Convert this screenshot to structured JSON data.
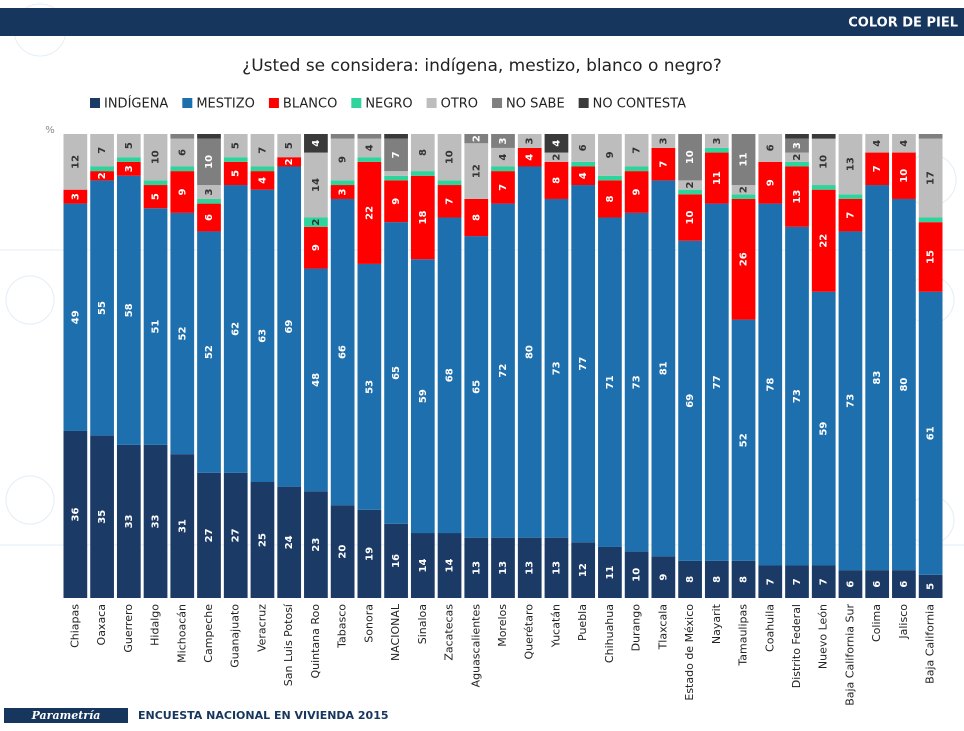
{
  "header": "COLOR DE PIEL",
  "footer": {
    "brand": "Parametría",
    "text": "ENCUESTA NACIONAL EN VIVIENDA 2015"
  },
  "chart_data": {
    "type": "stacked_bar_100",
    "title": "¿Usted se considera: indígena, mestizo, blanco o negro?",
    "y_label": "%",
    "ylim": [
      0,
      100
    ],
    "legend": "top",
    "categories": [
      "Chiapas",
      "Oaxaca",
      "Guerrero",
      "Hidalgo",
      "Michoacán",
      "Campeche",
      "Guanajuato",
      "Veracruz",
      "San Luis Potosí",
      "Quintana Roo",
      "Tabasco",
      "Sonora",
      "NACIONAL",
      "Sinaloa",
      "Zacatecas",
      "Aguascalientes",
      "Morelos",
      "Querétaro",
      "Yucatán",
      "Puebla",
      "Chihuahua",
      "Durango",
      "Tlaxcala",
      "Estado de México",
      "Nayarit",
      "Tamaulipas",
      "Coahuila",
      "Distrito Federal",
      "Nuevo León",
      "Baja California Sur",
      "Colima",
      "Jalisco",
      "Baja California"
    ],
    "series": [
      {
        "name": "INDÍGENA",
        "color": "#1b3a66",
        "values": [
          36,
          35,
          33,
          33,
          31,
          27,
          27,
          25,
          24,
          23,
          20,
          19,
          16,
          14,
          14,
          13,
          13,
          13,
          13,
          12,
          11,
          10,
          9,
          8,
          8,
          8,
          7,
          7,
          7,
          6,
          6,
          6,
          5
        ]
      },
      {
        "name": "MESTIZO",
        "color": "#1e6fae",
        "values": [
          49,
          55,
          58,
          51,
          52,
          52,
          62,
          63,
          69,
          48,
          66,
          53,
          65,
          59,
          68,
          65,
          72,
          80,
          73,
          77,
          71,
          73,
          81,
          69,
          77,
          52,
          78,
          73,
          59,
          73,
          83,
          80,
          61
        ]
      },
      {
        "name": "BLANCO",
        "color": "#ff0000",
        "values": [
          3,
          2,
          3,
          5,
          9,
          6,
          5,
          4,
          2,
          9,
          3,
          22,
          9,
          18,
          7,
          8,
          7,
          4,
          8,
          4,
          8,
          9,
          7,
          10,
          11,
          26,
          9,
          13,
          22,
          7,
          7,
          10,
          15
        ]
      },
      {
        "name": "NEGRO",
        "color": "#2fd39c",
        "values": [
          0,
          1,
          1,
          1,
          1,
          1,
          1,
          1,
          0,
          2,
          1,
          1,
          1,
          1,
          1,
          0,
          1,
          0,
          0,
          1,
          1,
          1,
          0,
          1,
          1,
          1,
          0,
          1,
          1,
          1,
          0,
          0,
          1
        ]
      },
      {
        "name": "OTRO",
        "color": "#bdbdbd",
        "values": [
          12,
          7,
          5,
          10,
          6,
          3,
          5,
          7,
          5,
          14,
          9,
          4,
          1,
          8,
          10,
          12,
          4,
          3,
          2,
          6,
          9,
          7,
          3,
          2,
          3,
          2,
          6,
          2,
          10,
          13,
          4,
          4,
          17
        ]
      },
      {
        "name": "NO SABE",
        "color": "#7f7f7f",
        "values": [
          0,
          0,
          0,
          0,
          1,
          10,
          0,
          0,
          0,
          0,
          1,
          1,
          7,
          0,
          0,
          2,
          3,
          0,
          0,
          0,
          0,
          0,
          0,
          10,
          0,
          11,
          0,
          3,
          0,
          0,
          0,
          0,
          1
        ]
      },
      {
        "name": "NO CONTESTA",
        "color": "#3a3a3a",
        "values": [
          0,
          0,
          0,
          0,
          0,
          1,
          0,
          0,
          0,
          4,
          0,
          0,
          1,
          0,
          0,
          0,
          0,
          0,
          4,
          0,
          0,
          0,
          0,
          0,
          0,
          0,
          0,
          1,
          1,
          0,
          0,
          0,
          0
        ]
      }
    ]
  }
}
